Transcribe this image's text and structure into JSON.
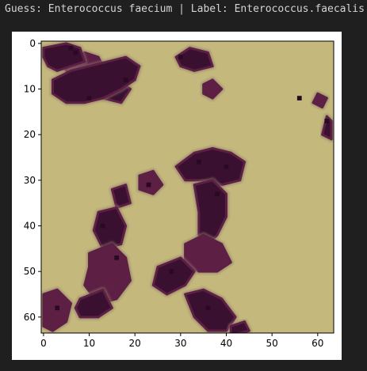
{
  "output": {
    "title_text": "Guess: Enterococcus faecium | Label: Enterococcus.faecalis"
  },
  "colors": {
    "background_agar": "#c4b87c",
    "stain_dark": "#3a1030",
    "stain_mid": "#5e1f45",
    "halo": "#8f7a6b",
    "output_bg": "#1f1f1f",
    "stdout_text": "#d4d4d4"
  },
  "figure": {
    "image_size": [
      64,
      64
    ],
    "description_type": "image",
    "xticks": [
      "0",
      "10",
      "20",
      "30",
      "40",
      "50",
      "60"
    ],
    "yticks": [
      "0",
      "10",
      "20",
      "30",
      "40",
      "50",
      "60"
    ]
  },
  "chart_data": {
    "type": "heatmap",
    "title": "",
    "xlabel": "",
    "ylabel": "",
    "xlim": [
      -0.5,
      63.5
    ],
    "ylim": [
      63.5,
      -0.5
    ],
    "x_ticks": [
      0,
      10,
      20,
      30,
      40,
      50,
      60
    ],
    "y_ticks": [
      0,
      10,
      20,
      30,
      40,
      50,
      60
    ],
    "grid": false
  }
}
